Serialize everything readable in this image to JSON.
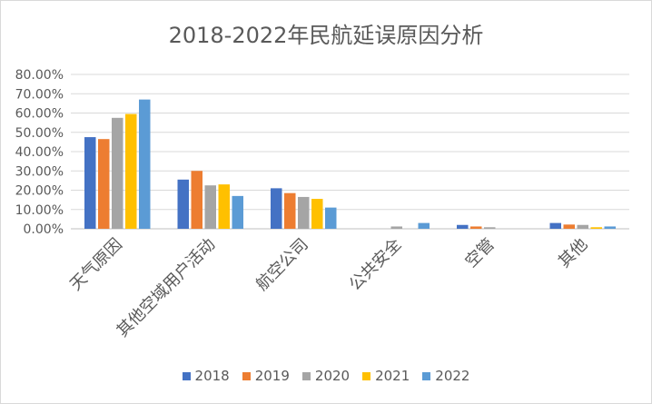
{
  "chart_data": {
    "type": "bar",
    "title": "2018-2022年民航延误原因分析",
    "xlabel": "",
    "ylabel": "",
    "ylim": [
      0,
      0.8
    ],
    "yticks": [
      "0.00%",
      "10.00%",
      "20.00%",
      "30.00%",
      "40.00%",
      "50.00%",
      "60.00%",
      "70.00%",
      "80.00%"
    ],
    "grid": true,
    "legend_position": "bottom",
    "categories": [
      "天气原因",
      "其他空域用户活动",
      "航空公司",
      "公共安全",
      "空管",
      "其他"
    ],
    "series": [
      {
        "name": "2018",
        "color": "#4472c4",
        "values": [
          0.475,
          0.255,
          0.21,
          0.0,
          0.02,
          0.03
        ]
      },
      {
        "name": "2019",
        "color": "#ed7d31",
        "values": [
          0.465,
          0.3,
          0.185,
          0.0,
          0.012,
          0.022
        ]
      },
      {
        "name": "2020",
        "color": "#a5a5a5",
        "values": [
          0.575,
          0.225,
          0.165,
          0.012,
          0.008,
          0.02
        ]
      },
      {
        "name": "2021",
        "color": "#ffc000",
        "values": [
          0.595,
          0.23,
          0.155,
          0.0,
          0.0,
          0.008
        ]
      },
      {
        "name": "2022",
        "color": "#5b9bd5",
        "values": [
          0.67,
          0.17,
          0.11,
          0.03,
          0.0,
          0.012
        ]
      }
    ]
  }
}
